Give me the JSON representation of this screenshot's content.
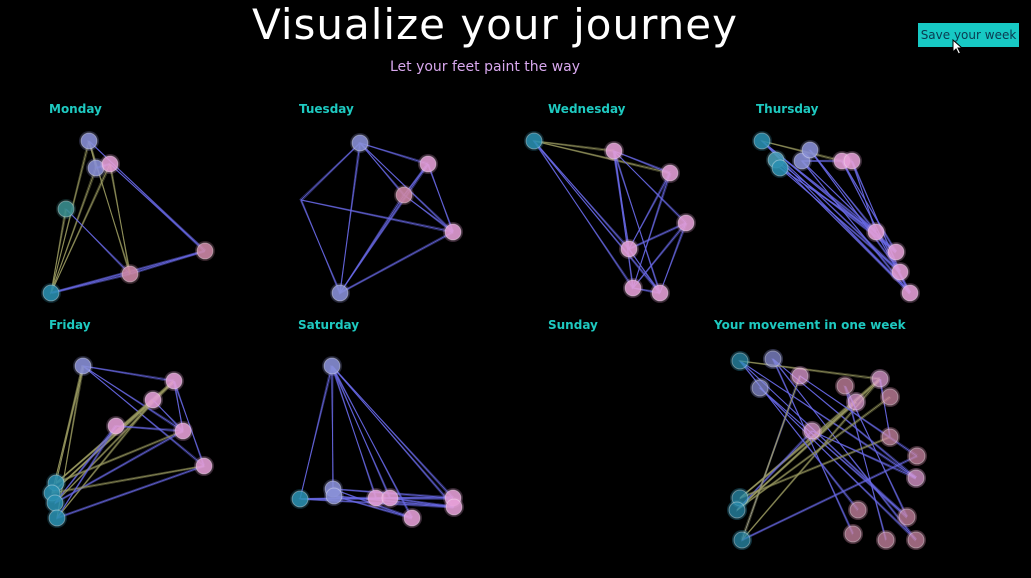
{
  "header": {
    "title": "Visualize your journey",
    "subtitle": "Let your feet paint the way",
    "save_label": "Save your week"
  },
  "colors": {
    "background": "#000000",
    "label": "#1ec9c0",
    "title": "#ffffff",
    "subtitle": "#d8a8ee",
    "button": "#17c9c4",
    "edge_blue": "#6a6ae8",
    "edge_olive": "#9a9a60"
  },
  "panels": [
    {
      "label": "Monday"
    },
    {
      "label": "Tuesday"
    },
    {
      "label": "Wednesday"
    },
    {
      "label": "Thursday"
    },
    {
      "label": "Friday"
    },
    {
      "label": "Saturday"
    },
    {
      "label": "Sunday"
    },
    {
      "label": "Your movement in one week"
    }
  ]
}
